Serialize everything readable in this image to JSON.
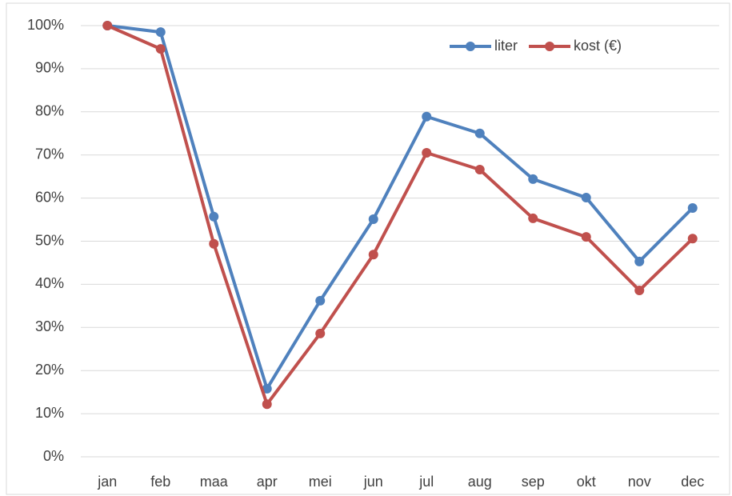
{
  "chart_data": {
    "type": "line",
    "categories": [
      "jan",
      "feb",
      "maa",
      "apr",
      "mei",
      "jun",
      "jul",
      "aug",
      "sep",
      "okt",
      "nov",
      "dec"
    ],
    "series": [
      {
        "name": "liter",
        "color": "#4f81bd",
        "values": [
          100,
          98.5,
          55.7,
          15.8,
          36.2,
          55.1,
          78.9,
          75.0,
          64.4,
          60.1,
          45.3,
          57.7
        ]
      },
      {
        "name": "kost (€)",
        "color": "#c0504d",
        "values": [
          100,
          94.6,
          49.4,
          12.2,
          28.6,
          46.9,
          70.5,
          66.6,
          55.3,
          51.0,
          38.6,
          50.6
        ]
      }
    ],
    "ylim": [
      0,
      100
    ],
    "yticks": [
      {
        "value": 0,
        "label": "0%"
      },
      {
        "value": 10,
        "label": "10%"
      },
      {
        "value": 20,
        "label": "20%"
      },
      {
        "value": 30,
        "label": "30%"
      },
      {
        "value": 40,
        "label": "40%"
      },
      {
        "value": 50,
        "label": "50%"
      },
      {
        "value": 60,
        "label": "60%"
      },
      {
        "value": 70,
        "label": "70%"
      },
      {
        "value": 80,
        "label": "80%"
      },
      {
        "value": 90,
        "label": "90%"
      },
      {
        "value": 100,
        "label": "100%"
      }
    ],
    "grid": true,
    "legend": "upper right"
  }
}
